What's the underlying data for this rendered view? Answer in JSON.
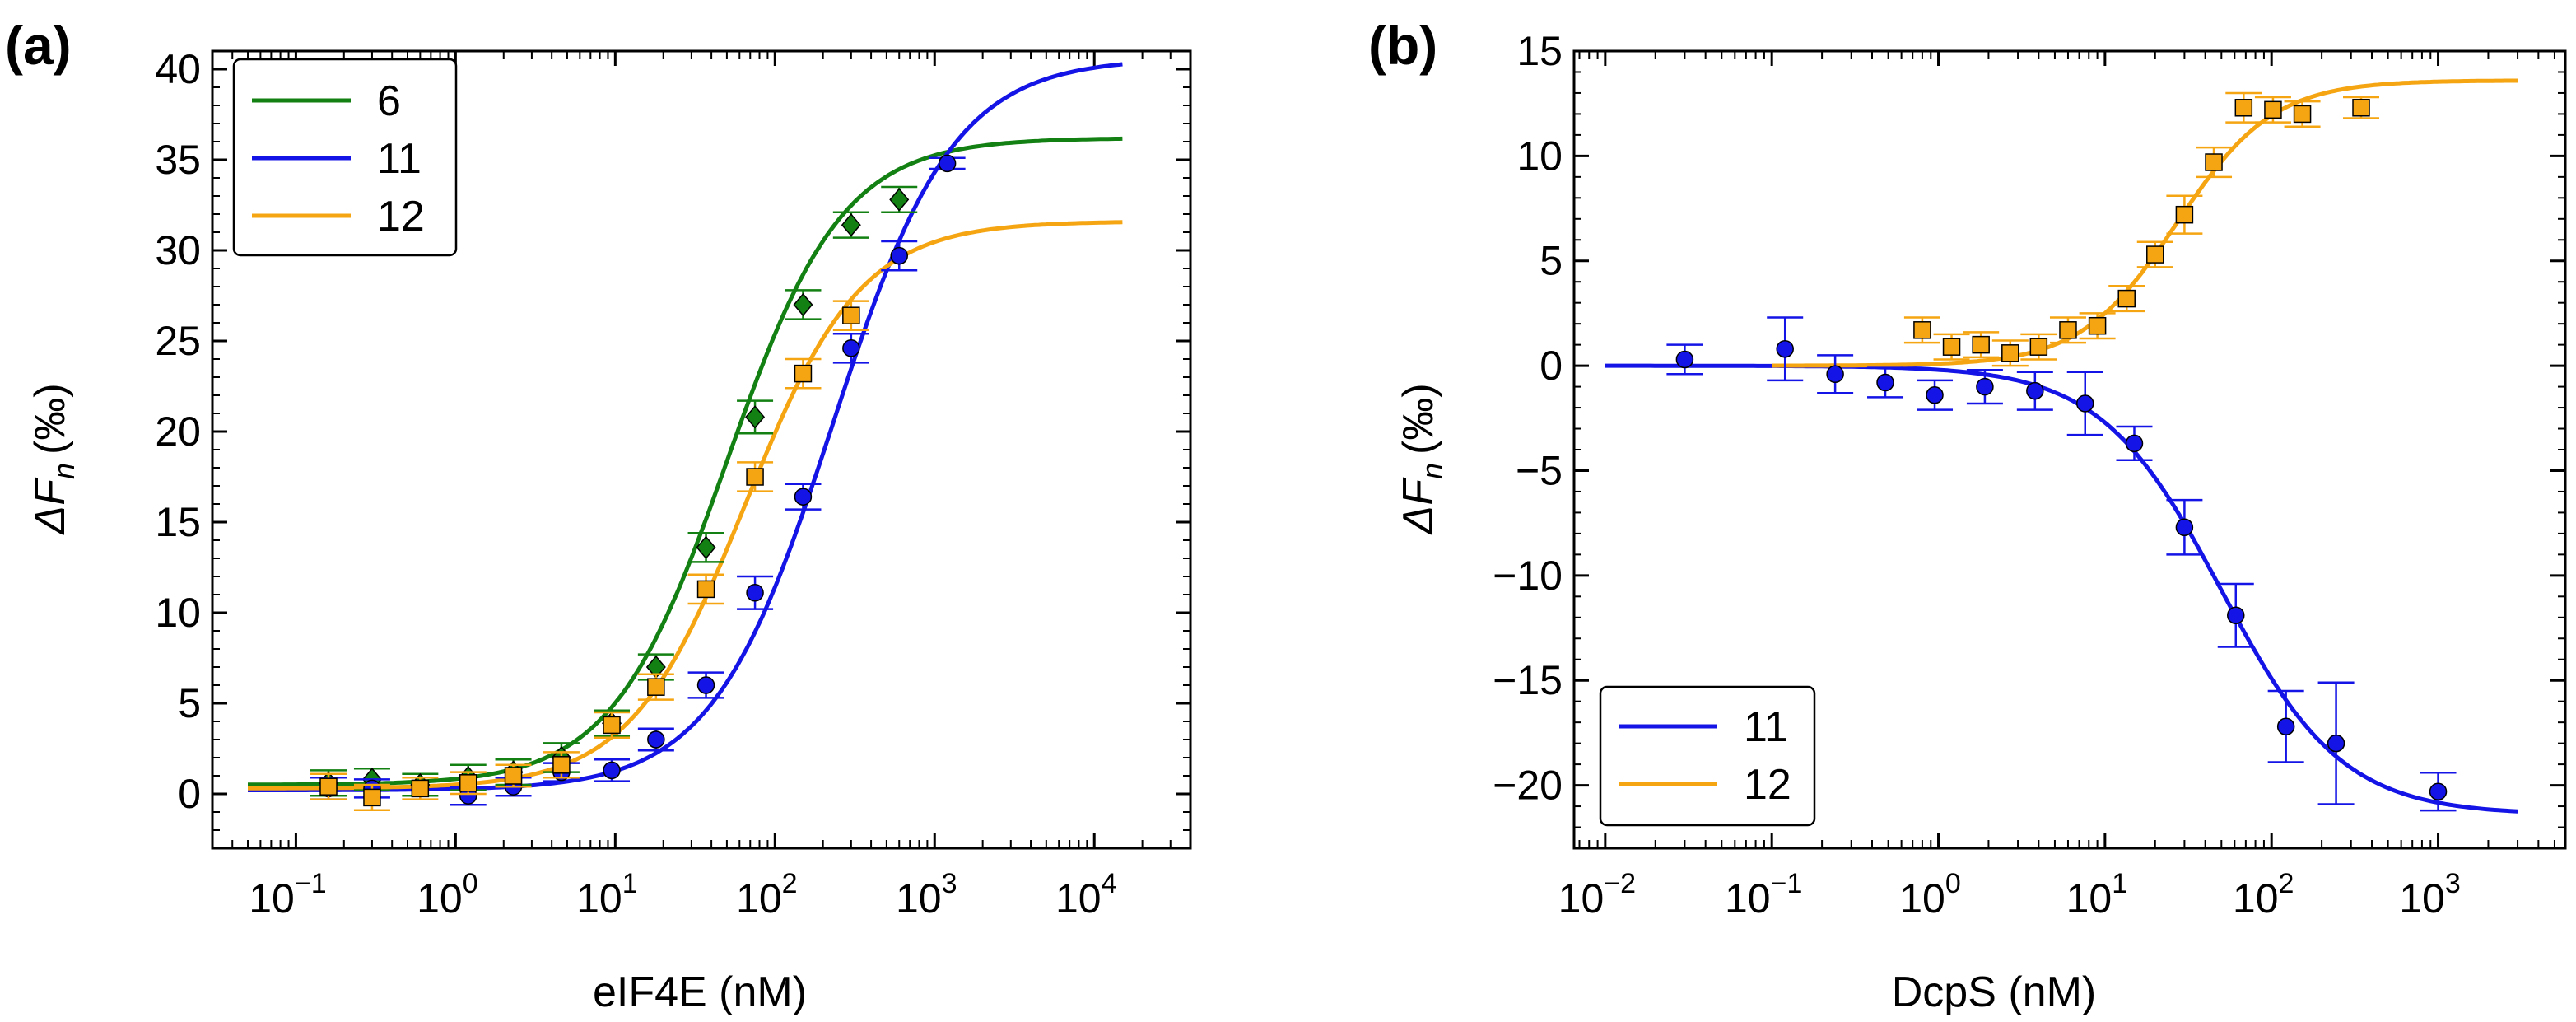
{
  "chart_data": [
    {
      "panel": "(a)",
      "type": "scatter",
      "xlabel": "eIF4E (nM)",
      "ylabel_main": "ΔF",
      "ylabel_sub": "n",
      "ylabel_unit": "(‰)",
      "xscale": "log",
      "xlim": [
        0.03,
        40000
      ],
      "ylim": [
        -3,
        41
      ],
      "xticks": [
        {
          "base": "10",
          "exp": "−1",
          "v": 0.1
        },
        {
          "base": "10",
          "exp": "0",
          "v": 1
        },
        {
          "base": "10",
          "exp": "1",
          "v": 10
        },
        {
          "base": "10",
          "exp": "2",
          "v": 100
        },
        {
          "base": "10",
          "exp": "3",
          "v": 1000
        },
        {
          "base": "10",
          "exp": "4",
          "v": 10000
        }
      ],
      "yticks": [
        {
          "label": "0",
          "v": 0
        },
        {
          "label": "5",
          "v": 5
        },
        {
          "label": "10",
          "v": 10
        },
        {
          "label": "15",
          "v": 15
        },
        {
          "label": "20",
          "v": 20
        },
        {
          "label": "25",
          "v": 25
        },
        {
          "label": "30",
          "v": 30
        },
        {
          "label": "35",
          "v": 35
        },
        {
          "label": "40",
          "v": 40
        }
      ],
      "legend_position": "top-left",
      "series": [
        {
          "name": "6",
          "color": "#128012",
          "marker": "diamond",
          "fit": {
            "bottom": 0.5,
            "top": 36.2,
            "ec50": 50,
            "hill": 1.2,
            "xmin": 0.05,
            "xmax": 15000
          },
          "points": [
            {
              "x": 0.16,
              "y": 0.6,
              "err": 0.7
            },
            {
              "x": 0.3,
              "y": 0.8,
              "err": 0.6
            },
            {
              "x": 0.6,
              "y": 0.5,
              "err": 0.6
            },
            {
              "x": 1.2,
              "y": 0.9,
              "err": 0.7
            },
            {
              "x": 2.3,
              "y": 1.2,
              "err": 0.7
            },
            {
              "x": 4.6,
              "y": 2.0,
              "err": 0.8
            },
            {
              "x": 9.5,
              "y": 3.9,
              "err": 0.7
            },
            {
              "x": 18,
              "y": 7.0,
              "err": 0.7
            },
            {
              "x": 37,
              "y": 13.6,
              "err": 0.8
            },
            {
              "x": 75,
              "y": 20.8,
              "err": 0.9
            },
            {
              "x": 150,
              "y": 27.0,
              "err": 0.8
            },
            {
              "x": 300,
              "y": 31.4,
              "err": 0.7
            },
            {
              "x": 600,
              "y": 32.8,
              "err": 0.7
            }
          ]
        },
        {
          "name": "11",
          "color": "#1414e6",
          "marker": "circle",
          "fit": {
            "bottom": 0.2,
            "top": 40.6,
            "ec50": 230,
            "hill": 1.15,
            "xmin": 0.05,
            "xmax": 15000
          },
          "points": [
            {
              "x": 0.16,
              "y": 0.3,
              "err": 0.6
            },
            {
              "x": 0.3,
              "y": 0.3,
              "err": 0.5
            },
            {
              "x": 1.2,
              "y": -0.1,
              "err": 0.5
            },
            {
              "x": 2.3,
              "y": 0.4,
              "err": 0.5
            },
            {
              "x": 4.6,
              "y": 1.2,
              "err": 0.5
            },
            {
              "x": 9.5,
              "y": 1.3,
              "err": 0.6
            },
            {
              "x": 18,
              "y": 3.0,
              "err": 0.6
            },
            {
              "x": 37,
              "y": 6.0,
              "err": 0.7
            },
            {
              "x": 75,
              "y": 11.1,
              "err": 0.9
            },
            {
              "x": 150,
              "y": 16.4,
              "err": 0.7
            },
            {
              "x": 300,
              "y": 24.6,
              "err": 0.8
            },
            {
              "x": 600,
              "y": 29.7,
              "err": 0.8
            },
            {
              "x": 1200,
              "y": 34.8,
              "err": 0.3
            }
          ]
        },
        {
          "name": "12",
          "color": "#f5a512",
          "marker": "square",
          "fit": {
            "bottom": 0.3,
            "top": 31.6,
            "ec50": 65,
            "hill": 1.2,
            "xmin": 0.05,
            "xmax": 15000
          },
          "points": [
            {
              "x": 0.16,
              "y": 0.4,
              "err": 0.7
            },
            {
              "x": 0.3,
              "y": -0.2,
              "err": 0.7
            },
            {
              "x": 0.6,
              "y": 0.3,
              "err": 0.6
            },
            {
              "x": 1.2,
              "y": 0.6,
              "err": 0.6
            },
            {
              "x": 2.3,
              "y": 1.0,
              "err": 0.6
            },
            {
              "x": 4.6,
              "y": 1.6,
              "err": 0.7
            },
            {
              "x": 9.5,
              "y": 3.8,
              "err": 0.7
            },
            {
              "x": 18,
              "y": 5.9,
              "err": 0.7
            },
            {
              "x": 37,
              "y": 11.3,
              "err": 0.8
            },
            {
              "x": 75,
              "y": 17.5,
              "err": 0.8
            },
            {
              "x": 150,
              "y": 23.2,
              "err": 0.8
            },
            {
              "x": 300,
              "y": 26.4,
              "err": 0.8
            }
          ]
        }
      ]
    },
    {
      "panel": "(b)",
      "type": "scatter",
      "xlabel": "DcpS (nM)",
      "ylabel_main": "ΔF",
      "ylabel_sub": "n",
      "ylabel_unit": "(‰)",
      "xscale": "log",
      "xlim": [
        0.0065,
        5800
      ],
      "ylim": [
        -23,
        15
      ],
      "xticks": [
        {
          "base": "10",
          "exp": "−2",
          "v": 0.01
        },
        {
          "base": "10",
          "exp": "−1",
          "v": 0.1
        },
        {
          "base": "10",
          "exp": "0",
          "v": 1
        },
        {
          "base": "10",
          "exp": "1",
          "v": 10
        },
        {
          "base": "10",
          "exp": "2",
          "v": 100
        },
        {
          "base": "10",
          "exp": "3",
          "v": 1000
        }
      ],
      "yticks": [
        {
          "label": "−20",
          "v": -20
        },
        {
          "label": "−15",
          "v": -15
        },
        {
          "label": "−10",
          "v": -10
        },
        {
          "label": "−5",
          "v": -5
        },
        {
          "label": "0",
          "v": 0
        },
        {
          "label": "5",
          "v": 5
        },
        {
          "label": "10",
          "v": 10
        },
        {
          "label": "15",
          "v": 15
        }
      ],
      "legend_position": "bottom-left",
      "series": [
        {
          "name": "11",
          "color": "#1414e6",
          "marker": "circle",
          "fit": {
            "bottom": 0,
            "top": -21.4,
            "ec50": 50,
            "hill": 1.2,
            "xmin": 0.01,
            "xmax": 3000
          },
          "points": [
            {
              "x": 0.03,
              "y": 0.3,
              "err": 0.7
            },
            {
              "x": 0.12,
              "y": 0.8,
              "err": 1.5
            },
            {
              "x": 0.24,
              "y": -0.4,
              "err": 0.9
            },
            {
              "x": 0.48,
              "y": -0.8,
              "err": 0.7
            },
            {
              "x": 0.95,
              "y": -1.4,
              "err": 0.7
            },
            {
              "x": 1.9,
              "y": -1.0,
              "err": 0.8
            },
            {
              "x": 3.8,
              "y": -1.2,
              "err": 0.9
            },
            {
              "x": 7.6,
              "y": -1.8,
              "err": 1.5
            },
            {
              "x": 15,
              "y": -3.7,
              "err": 0.8
            },
            {
              "x": 30,
              "y": -7.7,
              "err": 1.3
            },
            {
              "x": 61,
              "y": -11.9,
              "err": 1.5
            },
            {
              "x": 122,
              "y": -17.2,
              "err": 1.7
            },
            {
              "x": 244,
              "y": -18.0,
              "err": 2.9
            },
            {
              "x": 1000,
              "y": -20.3,
              "err": 0.9
            }
          ]
        },
        {
          "name": "12",
          "color": "#f5a512",
          "marker": "square",
          "fit": {
            "bottom": 0,
            "top": 13.6,
            "ec50": 27,
            "hill": 1.5,
            "xmin": 0.1,
            "xmax": 3000
          },
          "points": [
            {
              "x": 0.8,
              "y": 1.7,
              "err": 0.6
            },
            {
              "x": 1.2,
              "y": 0.9,
              "err": 0.6
            },
            {
              "x": 1.8,
              "y": 1.0,
              "err": 0.6
            },
            {
              "x": 2.7,
              "y": 0.6,
              "err": 0.6
            },
            {
              "x": 4.0,
              "y": 0.9,
              "err": 0.6
            },
            {
              "x": 6.0,
              "y": 1.7,
              "err": 0.6
            },
            {
              "x": 9.0,
              "y": 1.9,
              "err": 0.6
            },
            {
              "x": 13.5,
              "y": 3.2,
              "err": 0.6
            },
            {
              "x": 20,
              "y": 5.3,
              "err": 0.6
            },
            {
              "x": 30,
              "y": 7.2,
              "err": 0.9
            },
            {
              "x": 45,
              "y": 9.7,
              "err": 0.7
            },
            {
              "x": 68,
              "y": 12.3,
              "err": 0.7
            },
            {
              "x": 102,
              "y": 12.2,
              "err": 0.6
            },
            {
              "x": 153,
              "y": 12.0,
              "err": 0.6
            },
            {
              "x": 345,
              "y": 12.3,
              "err": 0.5
            }
          ]
        }
      ]
    }
  ]
}
